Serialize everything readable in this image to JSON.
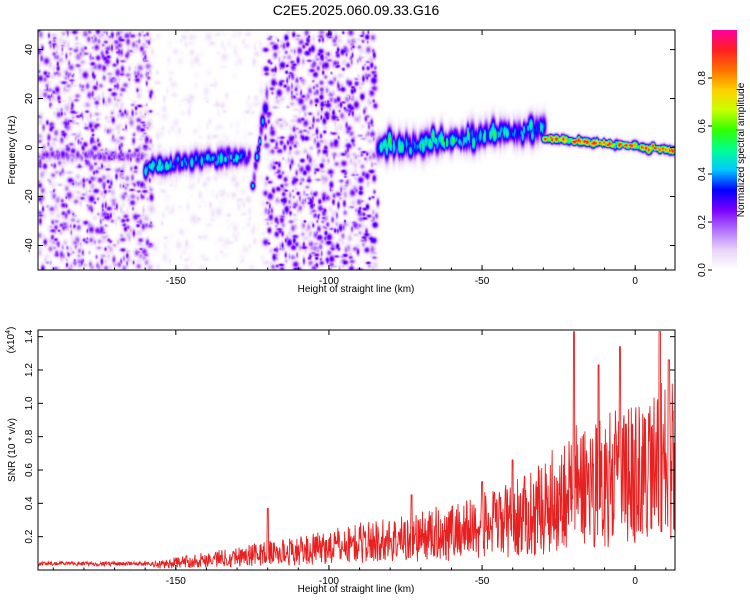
{
  "title": "C2E5.2025.060.09.33.G16",
  "chart_data": [
    {
      "type": "heatmap",
      "xlabel": "Height of straight line (km)",
      "ylabel": "Frequency (Hz)",
      "xlim": [
        -195,
        13
      ],
      "ylim": [
        -50,
        48
      ],
      "xticks": [
        -150,
        -100,
        -50,
        0
      ],
      "xtick_labels": [
        "-150",
        "-100",
        "-50",
        "0"
      ],
      "yticks": [
        -40,
        -20,
        0,
        20,
        40
      ],
      "ytick_labels": [
        "-40",
        "-20",
        "0",
        "20",
        "40"
      ],
      "colorbar": {
        "label": "Normalized spectral amplitude",
        "range": [
          0,
          1
        ],
        "ticks": [
          0.0,
          0.2,
          0.4,
          0.6,
          0.8
        ],
        "tick_labels": [
          "0.0",
          "0.2",
          "0.4",
          "0.6",
          "0.8"
        ],
        "colors": [
          "#ffffff",
          "#e8d4f8",
          "#b070ff",
          "#7a00ff",
          "#0000ff",
          "#00c8ff",
          "#00ff90",
          "#32ff00",
          "#c8ff00",
          "#ffd000",
          "#ff7000",
          "#ff2020",
          "#ff00a0"
        ]
      },
      "noise_regions": [
        {
          "x": [
            -195,
            -158
          ],
          "f": [
            -50,
            48
          ],
          "level": 0.18
        },
        {
          "x": [
            -158,
            -121
          ],
          "f": [
            -50,
            48
          ],
          "level": 0.04
        },
        {
          "x": [
            -121,
            -85
          ],
          "f": [
            -50,
            48
          ],
          "level": 0.2
        }
      ],
      "bands": [
        {
          "x": [
            -195,
            -160
          ],
          "f0": [
            -3,
            -3
          ],
          "width": 4,
          "level": 0.2
        },
        {
          "x": [
            -160,
            -126
          ],
          "f0": [
            -8,
            -3
          ],
          "width": 7,
          "level": 0.42
        },
        {
          "x": [
            -125,
            -120
          ],
          "f0": [
            -15,
            25
          ],
          "width": 6,
          "level": 0.4
        },
        {
          "x": [
            -86,
            -84
          ],
          "f0": [
            -42,
            -20
          ],
          "width": 4,
          "level": 0.3
        },
        {
          "x": [
            -84,
            -30
          ],
          "f0": [
            0,
            8
          ],
          "width": 9,
          "level": 0.5
        },
        {
          "x": [
            -30,
            13
          ],
          "f0": [
            4,
            -1
          ],
          "width": 3,
          "level": 0.88
        }
      ]
    },
    {
      "type": "line",
      "xlabel": "Height of straight line (km)",
      "ylabel": "SNR (10 * v/v)",
      "y_multiplier": "(x10",
      "y_multiplier_exp": "4",
      "y_multiplier_close": ")",
      "xlim": [
        -195,
        13
      ],
      "ylim": [
        0,
        14400
      ],
      "xticks": [
        -150,
        -100,
        -50,
        0
      ],
      "xtick_labels": [
        "-150",
        "-100",
        "-50",
        "0"
      ],
      "yticks": [
        2000,
        4000,
        6000,
        8000,
        10000,
        12000,
        14000
      ],
      "ytick_labels": [
        "0.2",
        "0.4",
        "0.6",
        "0.8",
        "1.0",
        "1.2",
        "1.4"
      ],
      "color": "#e82020",
      "envelope": {
        "x": [
          -195,
          -170,
          -158,
          -150,
          -140,
          -130,
          -120,
          -110,
          -100,
          -90,
          -80,
          -70,
          -60,
          -50,
          -40,
          -35,
          -30,
          -25,
          -20,
          -15,
          -10,
          -5,
          0,
          5,
          8,
          13
        ],
        "y": [
          300,
          400,
          450,
          700,
          1000,
          1300,
          1600,
          1800,
          2200,
          2600,
          2900,
          3200,
          3700,
          4200,
          4800,
          5300,
          6000,
          7000,
          8000,
          8300,
          8500,
          8800,
          9200,
          9500,
          10500,
          10500
        ],
        "peaks": [
          {
            "x": -120,
            "y": 3700
          },
          {
            "x": -73,
            "y": 4500
          },
          {
            "x": -50,
            "y": 5300
          },
          {
            "x": -40,
            "y": 6600
          },
          {
            "x": -20,
            "y": 14300
          },
          {
            "x": -12,
            "y": 12300
          },
          {
            "x": -5,
            "y": 13400
          },
          {
            "x": 8,
            "y": 14300
          },
          {
            "x": 11,
            "y": 12600
          }
        ]
      }
    }
  ]
}
